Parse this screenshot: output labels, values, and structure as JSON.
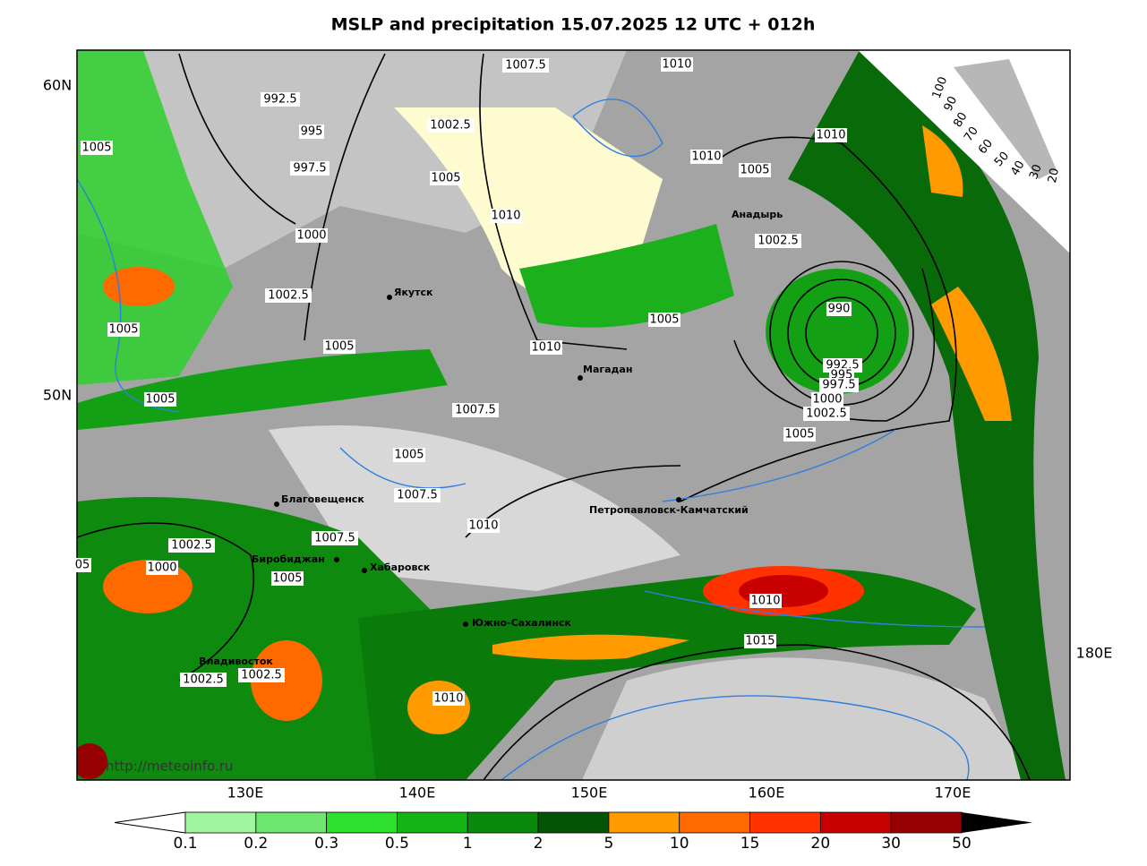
{
  "title": "MSLP and precipitation 15.07.2025 12 UTC + 012h",
  "latitude_labels": [
    "60N",
    "50N"
  ],
  "longitude_labels": [
    "130E",
    "140E",
    "150E",
    "160E",
    "170E",
    "180E"
  ],
  "isobar_labels": [
    "1007.5",
    "1010",
    "992.5",
    "1002.5",
    "995",
    "1005",
    "1010",
    "1010",
    "997.5",
    "1005",
    "1005",
    "1010",
    "1000",
    "1002.5",
    "1002.5",
    "990",
    "1005",
    "1005",
    "1005",
    "1010",
    "992.5",
    "995",
    "997.5",
    "1000",
    "1005",
    "1007.5",
    "1002.5",
    "1005",
    "1005",
    "1007.5",
    "1010",
    "1007.5",
    "1002.5",
    "1000",
    "05",
    "1005",
    "1010",
    "1015",
    "1002.5",
    "1002.5",
    "1010"
  ],
  "cities": [
    "Якутск",
    "Магадан",
    "Анадырь",
    "Благовещенск",
    "Биробиджан",
    "Хабаровск",
    "Петропавловск-Камчатский",
    "Южно-Сахалинск",
    "Владивосток"
  ],
  "cloud_scale": [
    "100",
    "90",
    "80",
    "70",
    "60",
    "50",
    "40",
    "30",
    "20"
  ],
  "precip_scale": {
    "labels": [
      0.1,
      0.2,
      0.3,
      0.5,
      1,
      2,
      5,
      10,
      15,
      20,
      30,
      50
    ],
    "colors": [
      "#a0f5a0",
      "#6ee66e",
      "#2ee02e",
      "#14b414",
      "#0a8a0a",
      "#055405",
      "#ff9a00",
      "#ff6a00",
      "#ff3200",
      "#c80000",
      "#960000"
    ]
  },
  "watermark": "http://meteoinfo.ru"
}
